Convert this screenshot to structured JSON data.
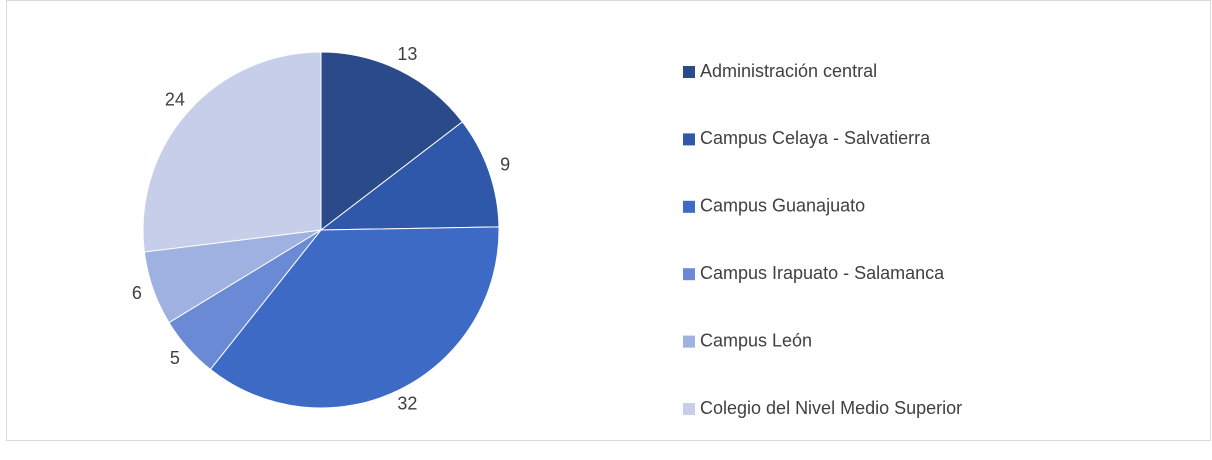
{
  "chart_data": {
    "type": "pie",
    "categories": [
      "Administración central",
      "Campus Celaya - Salvatierra",
      "Campus Guanajuato",
      "Campus Irapuato - Salamanca",
      "Campus León",
      "Colegio del Nivel Medio Superior"
    ],
    "values": [
      13,
      9,
      32,
      5,
      6,
      24
    ],
    "colors": [
      "#2b4a8a",
      "#2f57aa",
      "#3d6ac4",
      "#6a8ad6",
      "#9fb1e0",
      "#c6cee9"
    ],
    "legend": "right"
  }
}
